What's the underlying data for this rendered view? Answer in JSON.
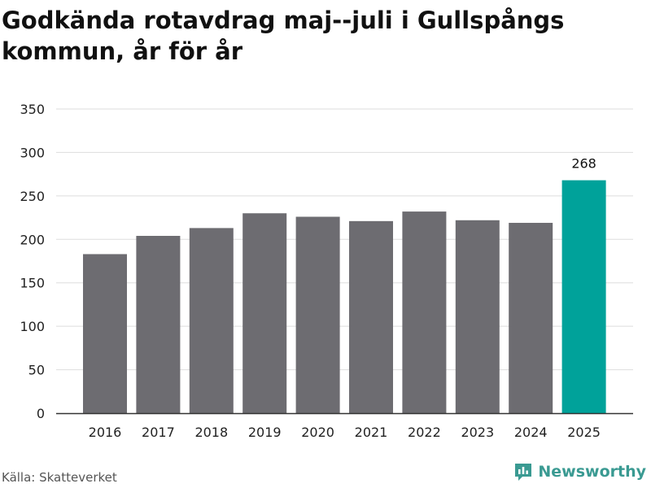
{
  "title": "Godkända rotavdrag maj--juli i Gullspångs kommun, år för år",
  "source": "Källa: Skatteverket",
  "brand": {
    "name": "Newsworthy",
    "icon": "newsworthy-logo-icon",
    "color": "#3a9a92"
  },
  "colors": {
    "bar": "#6d6c71",
    "highlight": "#00a29a",
    "grid": "#dddddd",
    "axis": "#333333"
  },
  "chart_data": {
    "type": "bar",
    "categories": [
      "2016",
      "2017",
      "2018",
      "2019",
      "2020",
      "2021",
      "2022",
      "2023",
      "2024",
      "2025"
    ],
    "values": [
      183,
      204,
      213,
      230,
      226,
      221,
      232,
      222,
      219,
      268
    ],
    "highlight_index": 9,
    "data_labels": [
      {
        "index": 9,
        "text": "268"
      }
    ],
    "ylim": [
      0,
      350
    ],
    "yticks": [
      0,
      50,
      100,
      150,
      200,
      250,
      300,
      350
    ],
    "grid": true,
    "xlabel": "",
    "ylabel": ""
  }
}
